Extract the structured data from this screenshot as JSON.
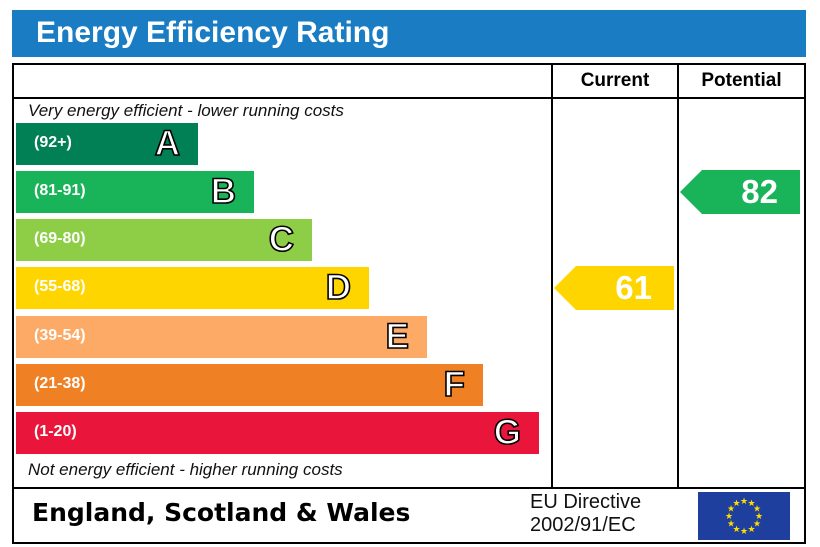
{
  "title": "Energy Efficiency Rating",
  "chart_data": {
    "type": "bar",
    "columns": {
      "current": "Current",
      "potential": "Potential"
    },
    "top_note": "Very energy efficient - lower running costs",
    "bottom_note": "Not energy efficient - higher running costs",
    "bands": [
      {
        "letter": "A",
        "range": "(92+)",
        "color": "#008054"
      },
      {
        "letter": "B",
        "range": "(81-91)",
        "color": "#19b459"
      },
      {
        "letter": "C",
        "range": "(69-80)",
        "color": "#8dce46"
      },
      {
        "letter": "D",
        "range": "(55-68)",
        "color": "#ffd500"
      },
      {
        "letter": "E",
        "range": "(39-54)",
        "color": "#fcaa65"
      },
      {
        "letter": "F",
        "range": "(21-38)",
        "color": "#ef8023"
      },
      {
        "letter": "G",
        "range": "(1-20)",
        "color": "#e9153b"
      }
    ],
    "current": {
      "value": "61",
      "band": "D",
      "color": "#ffd500"
    },
    "potential": {
      "value": "82",
      "band": "B",
      "color": "#19b459"
    }
  },
  "footer": {
    "region": "England, Scotland & Wales",
    "directive_line1": "EU Directive",
    "directive_line2": "2002/91/EC"
  }
}
